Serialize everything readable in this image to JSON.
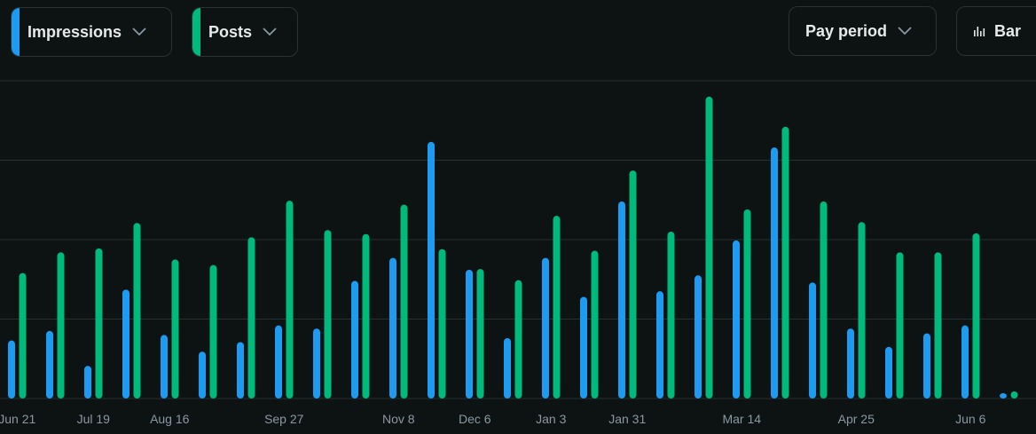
{
  "controls": {
    "metric1": {
      "label": "Impressions",
      "color": "#1d9bf0"
    },
    "metric2": {
      "label": "Posts",
      "color": "#00ba7c"
    },
    "period": {
      "label": "Pay period"
    },
    "chart_type": {
      "label": "Bar",
      "icon": "bar-chart-icon"
    }
  },
  "chart_data": {
    "type": "bar",
    "grid": true,
    "y_axis_labels_shown": false,
    "ylim": [
      0,
      400
    ],
    "categories": [
      "Jun 21",
      "",
      "Jul 19",
      "",
      "Aug 16",
      "",
      "",
      "Sep 27",
      "",
      "",
      "Nov 8",
      "",
      "Dec 6",
      "",
      "Jan 3",
      "",
      "Jan 31",
      "",
      "",
      "Mar 14",
      "",
      "",
      "Apr 25",
      "",
      "",
      "Jun 6",
      ""
    ],
    "series": [
      {
        "name": "Impressions",
        "color": "#1d9bf0",
        "values": [
          73,
          85,
          41,
          137,
          80,
          59,
          71,
          92,
          88,
          148,
          177,
          323,
          162,
          76,
          177,
          128,
          248,
          135,
          155,
          199,
          316,
          146,
          88,
          65,
          82,
          92,
          4
        ]
      },
      {
        "name": "Posts",
        "color": "#00ba7c",
        "values": [
          158,
          184,
          189,
          221,
          175,
          168,
          203,
          249,
          212,
          207,
          244,
          188,
          163,
          149,
          230,
          186,
          287,
          210,
          380,
          238,
          342,
          248,
          222,
          184,
          184,
          208,
          9
        ]
      }
    ]
  }
}
